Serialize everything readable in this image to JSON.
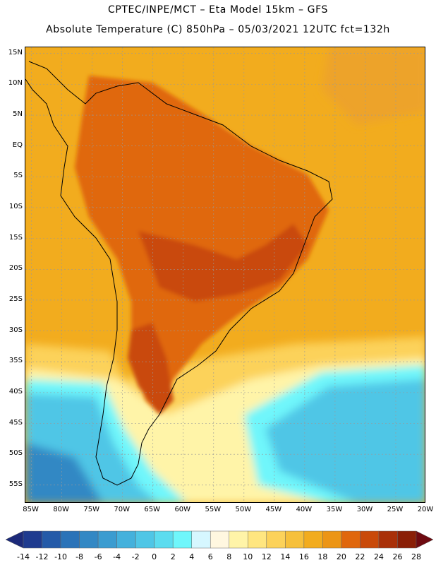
{
  "header": {
    "line1": "CPTEC/INPE/MCT –  Eta Model 15km – GFS",
    "line2": "Absolute Temperature (C) 850hPa – 05/03/2021 12UTC fct=132h"
  },
  "axes": {
    "lat_labels": [
      "15N",
      "10N",
      "5N",
      "EQ",
      "5S",
      "10S",
      "15S",
      "20S",
      "25S",
      "30S",
      "35S",
      "40S",
      "45S",
      "50S",
      "55S"
    ],
    "lon_labels": [
      "85W",
      "80W",
      "75W",
      "70W",
      "65W",
      "60W",
      "55W",
      "50W",
      "45W",
      "40W",
      "35W",
      "30W",
      "25W",
      "20W"
    ]
  },
  "colorbar": {
    "labels": [
      "-14",
      "-12",
      "-10",
      "-8",
      "-6",
      "-4",
      "-2",
      "0",
      "2",
      "4",
      "6",
      "8",
      "10",
      "12",
      "14",
      "16",
      "18",
      "20",
      "22",
      "24",
      "26",
      "28"
    ],
    "colors": [
      "#1f3b8f",
      "#245aa8",
      "#2b73b8",
      "#3388c4",
      "#3b9cd0",
      "#44b1dc",
      "#4fc6e6",
      "#5cdcef",
      "#6ff6fb",
      "#d6f7ff",
      "#fff7e0",
      "#fff4a8",
      "#ffe680",
      "#fcd25a",
      "#f6c03b",
      "#f2ac1e",
      "#ec9515",
      "#e0670d",
      "#c94a0a",
      "#a93008",
      "#8a1f06"
    ],
    "low_color": "#1c2a7a",
    "high_color": "#6e0a10"
  },
  "palette": {
    "ocean_warm": "#f2ac1e",
    "ocean_north": "#eda32a",
    "land_hot": "#e0670d",
    "land_very_hot": "#c94a0a",
    "subtropical": "#fcd25a",
    "midlat": "#fff4a8",
    "cold_front": "#6ff6fb",
    "cold": "#4fc6e6",
    "very_cold": "#3388c4",
    "coast": "#000000",
    "grid": "#999999"
  }
}
